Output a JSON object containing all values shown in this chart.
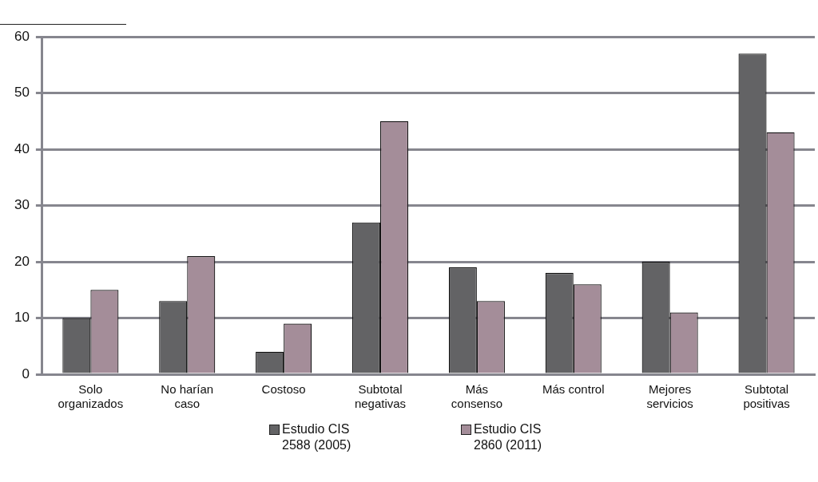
{
  "chart_data": {
    "type": "bar",
    "categories": [
      "Solo organizados",
      "No harían caso",
      "Costoso",
      "Subtotal negativas",
      "Más consenso",
      "Más control",
      "Mejores servicios",
      "Subtotal positivas"
    ],
    "series": [
      {
        "name": "Estudio CIS 2588 (2005)",
        "color": "#636365",
        "values": [
          10,
          13,
          4,
          27,
          19,
          18,
          20,
          57
        ]
      },
      {
        "name": "Estudio CIS 2860 (2011)",
        "color": "#a48d99",
        "values": [
          15,
          21,
          9,
          45,
          13,
          16,
          11,
          43
        ]
      }
    ],
    "ylim": [
      0,
      60
    ],
    "yticks": [
      0,
      10,
      20,
      30,
      40,
      50,
      60
    ],
    "grid": "y",
    "legend": "bottom"
  }
}
